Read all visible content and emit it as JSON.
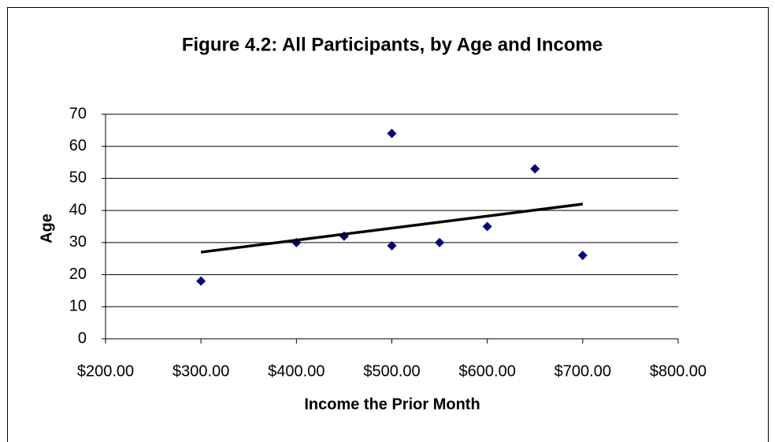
{
  "chart_data": {
    "type": "scatter",
    "title": "Figure 4.2: All Participants, by Age and Income",
    "x_label": "Income the Prior Month",
    "y_label": "Age",
    "series": [
      {
        "color": "#000080",
        "x": [
          300,
          400,
          450,
          500,
          500,
          550,
          600,
          650,
          700
        ],
        "values": [
          18,
          30,
          32,
          64,
          29,
          30,
          35,
          53,
          26
        ]
      }
    ],
    "trendline": {
      "color": "#000000",
      "x": [
        300,
        700
      ],
      "values": [
        27,
        42
      ]
    },
    "xlim": [
      200,
      800
    ],
    "xticks": [
      {
        "value": 200,
        "label": "$200.00"
      },
      {
        "value": 300,
        "label": "$300.00"
      },
      {
        "value": 400,
        "label": "$400.00"
      },
      {
        "value": 500,
        "label": "$500.00"
      },
      {
        "value": 600,
        "label": "$600.00"
      },
      {
        "value": 700,
        "label": "$700.00"
      },
      {
        "value": 800,
        "label": "$800.00"
      }
    ],
    "ylim": [
      0,
      70
    ],
    "yticks": [
      0,
      10,
      20,
      30,
      40,
      50,
      60,
      70
    ],
    "grid": true
  }
}
